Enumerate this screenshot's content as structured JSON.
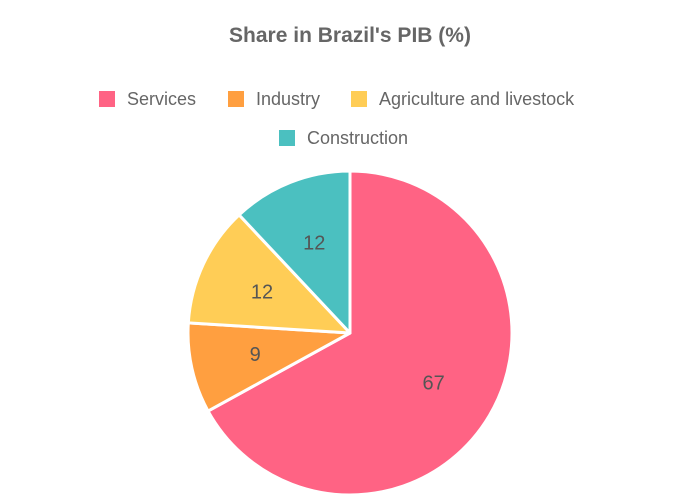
{
  "chart_data": {
    "type": "pie",
    "title": "Share in Brazil's PIB (%)",
    "legend_position": "top",
    "slices": [
      {
        "label": "Services",
        "value": 67,
        "color": "#ff6384"
      },
      {
        "label": "Industry",
        "value": 9,
        "color": "#ff9f40"
      },
      {
        "label": "Agriculture and livestock",
        "value": 12,
        "color": "#ffcd56"
      },
      {
        "label": "Construction",
        "value": 12,
        "color": "#4bc0c0"
      }
    ]
  }
}
